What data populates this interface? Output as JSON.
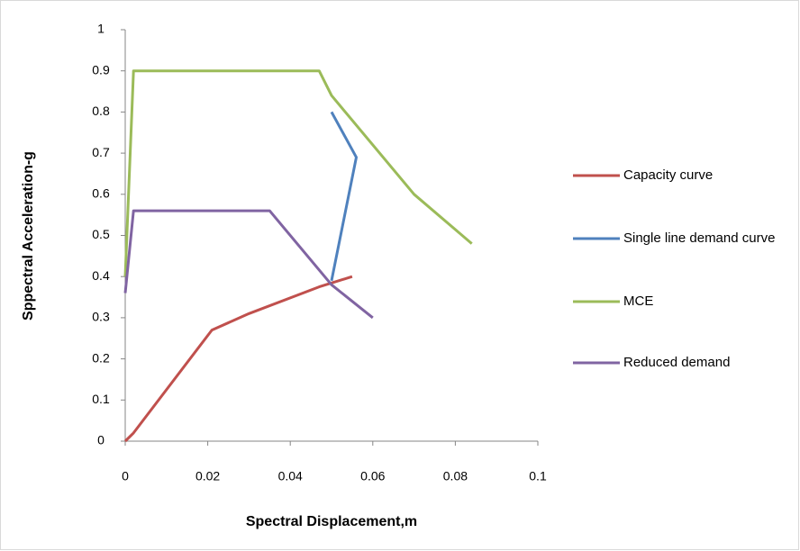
{
  "chart_data": {
    "type": "line",
    "xlabel": "Spectral Displacement,m",
    "ylabel": "Sppectral Acceleration-g",
    "xlim": [
      0,
      0.1
    ],
    "xticks": [
      0,
      0.02,
      0.04,
      0.06,
      0.08,
      0.1
    ],
    "ylim": [
      0,
      1
    ],
    "yticks": [
      0,
      0.1,
      0.2,
      0.3,
      0.4,
      0.5,
      0.6,
      0.7,
      0.8,
      0.9,
      1
    ],
    "legend": "right",
    "series": [
      {
        "name": "Capacity curve",
        "color": "#c0504d",
        "x": [
          0,
          0.002,
          0.021,
          0.03,
          0.047,
          0.055
        ],
        "values": [
          0,
          0.02,
          0.27,
          0.31,
          0.375,
          0.4
        ]
      },
      {
        "name": "Single line demand curve",
        "color": "#4f81bd",
        "x": [
          0.05,
          0.056,
          0.05
        ],
        "values": [
          0.8,
          0.69,
          0.39
        ]
      },
      {
        "name": "MCE",
        "color": "#9bbb59",
        "x": [
          0,
          0.002,
          0.047,
          0.05,
          0.07,
          0.084
        ],
        "values": [
          0.4,
          0.9,
          0.9,
          0.84,
          0.6,
          0.48
        ]
      },
      {
        "name": "Reduced demand",
        "color": "#8064a2",
        "x": [
          0,
          0.002,
          0.035,
          0.05,
          0.06
        ],
        "values": [
          0.36,
          0.56,
          0.56,
          0.38,
          0.3
        ]
      }
    ]
  }
}
